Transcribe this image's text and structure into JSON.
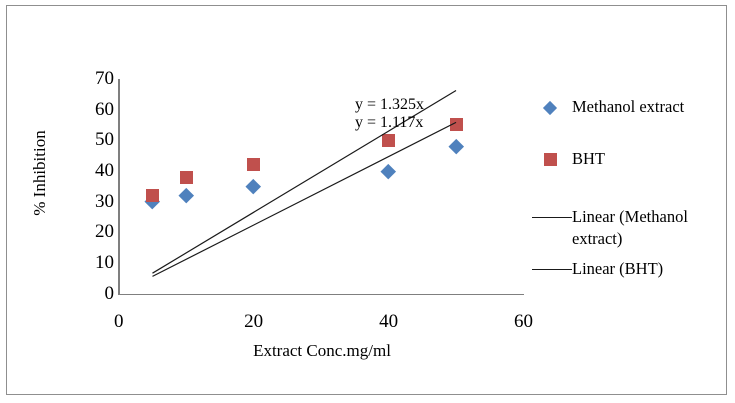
{
  "figure": {
    "background": "#ffffff",
    "border_color": "#8f8f8f",
    "axis_color": "#7f7f7f",
    "trendline_color": "#1a1a1a"
  },
  "chart_data": {
    "type": "scatter",
    "title": "",
    "xlabel": "Extract Conc.mg/ml",
    "ylabel": "% Inhibition",
    "xlim": [
      0,
      60
    ],
    "ylim": [
      0,
      70
    ],
    "x_ticks": [
      0,
      20,
      40,
      60
    ],
    "y_ticks": [
      0,
      10,
      20,
      30,
      40,
      50,
      60,
      70
    ],
    "grid": false,
    "series": [
      {
        "name": "Methanol extract",
        "marker": "diamond",
        "color": "#4F81BD",
        "points": [
          [
            5,
            30
          ],
          [
            10,
            32
          ],
          [
            20,
            35
          ],
          [
            40,
            40
          ],
          [
            50,
            48
          ]
        ]
      },
      {
        "name": "BHT",
        "marker": "square",
        "color": "#C0504D",
        "points": [
          [
            5,
            32
          ],
          [
            10,
            38
          ],
          [
            20,
            42
          ],
          [
            40,
            50
          ],
          [
            50,
            55
          ]
        ]
      }
    ],
    "trendlines": [
      {
        "name": "Linear (BHT)",
        "slope": 1.325,
        "intercept": 0,
        "x_range": [
          5,
          50
        ]
      },
      {
        "name": "Linear (Methanol extract)",
        "slope": 1.117,
        "intercept": 0,
        "x_range": [
          5,
          50
        ]
      }
    ],
    "annotations": [
      {
        "text": "y = 1.325x"
      },
      {
        "text": "y = 1.117x"
      }
    ],
    "legend": {
      "position": "right",
      "entries": [
        {
          "label": "Methanol extract",
          "marker": "diamond",
          "color": "#4F81BD"
        },
        {
          "label": "BHT",
          "marker": "square",
          "color": "#C0504D"
        },
        {
          "label": "Linear (Methanol extract)",
          "marker": "line",
          "color": "#1a1a1a"
        },
        {
          "label": "Linear (BHT)",
          "marker": "line",
          "color": "#1a1a1a"
        }
      ]
    }
  }
}
